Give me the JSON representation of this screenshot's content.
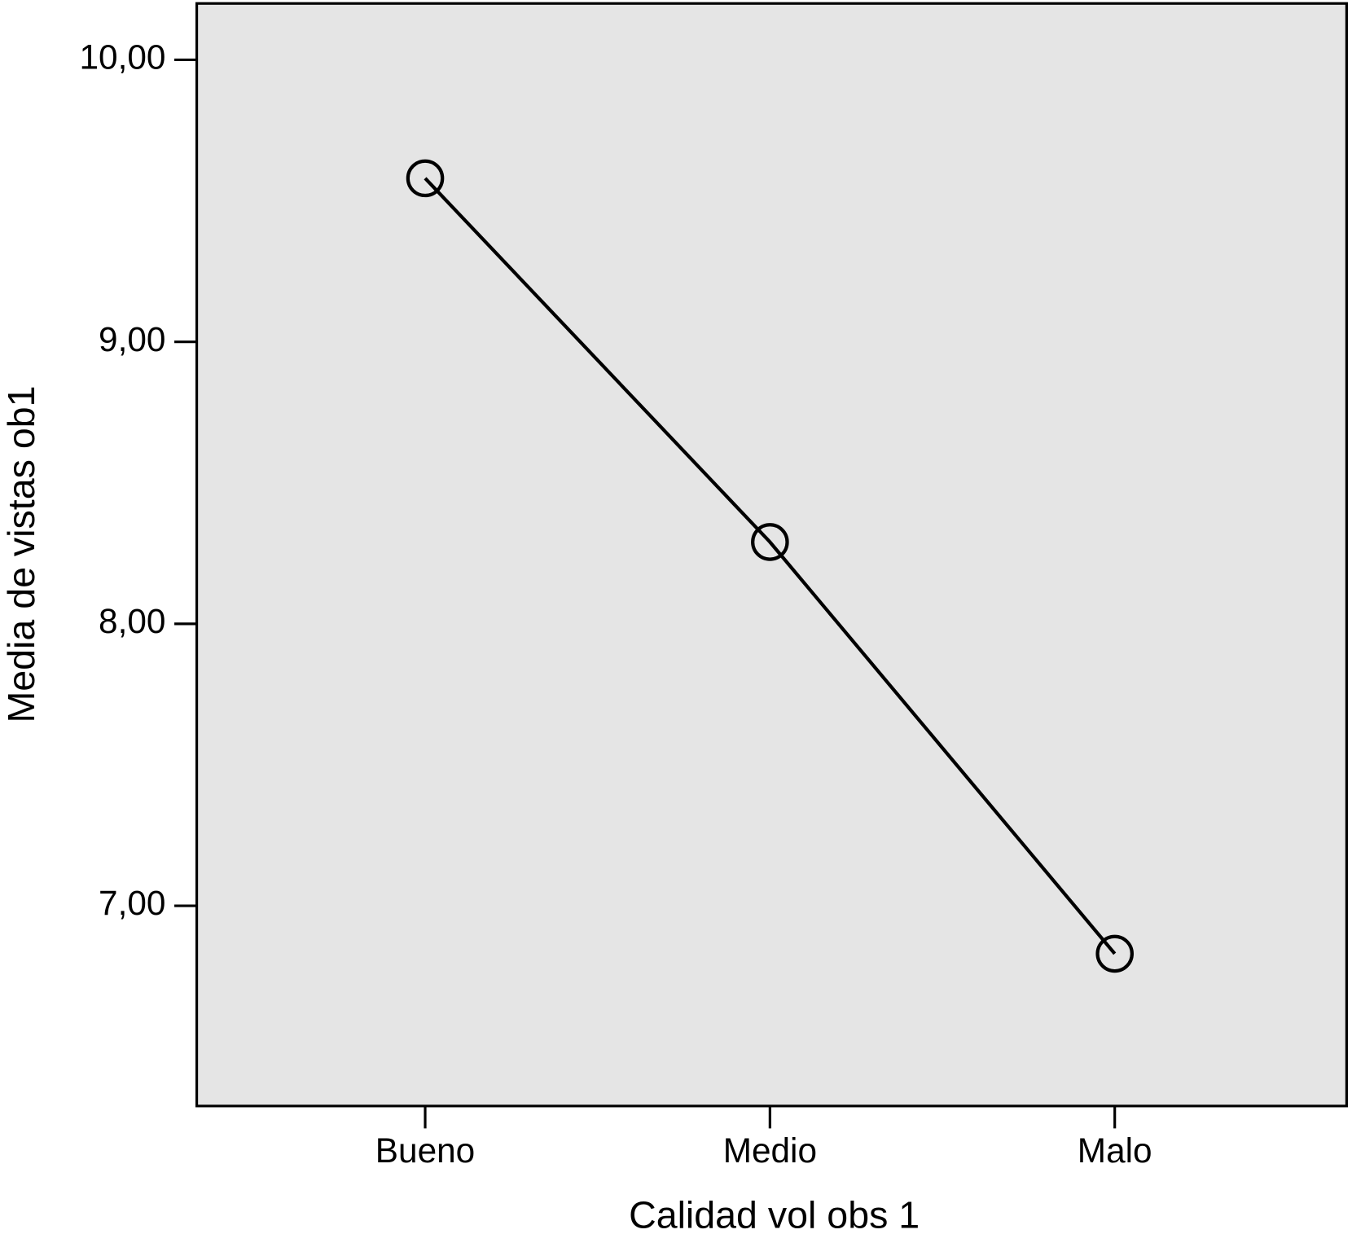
{
  "chart_data": {
    "type": "line",
    "x_label": "Calidad vol obs 1",
    "y_label": "Media de vistas ob1",
    "categories": [
      "Bueno",
      "Medio",
      "Malo"
    ],
    "values": [
      9.58,
      8.29,
      6.83
    ],
    "color": "#000000",
    "background": "#e5e5e5",
    "marker": "circle",
    "ylim": [
      6.29,
      10.2
    ],
    "yticks": [
      {
        "value": 7,
        "label": "7,00"
      },
      {
        "value": 8,
        "label": "8,00"
      },
      {
        "value": 9,
        "label": "9,00"
      },
      {
        "value": 10,
        "label": "10,00"
      }
    ],
    "grid": false
  }
}
